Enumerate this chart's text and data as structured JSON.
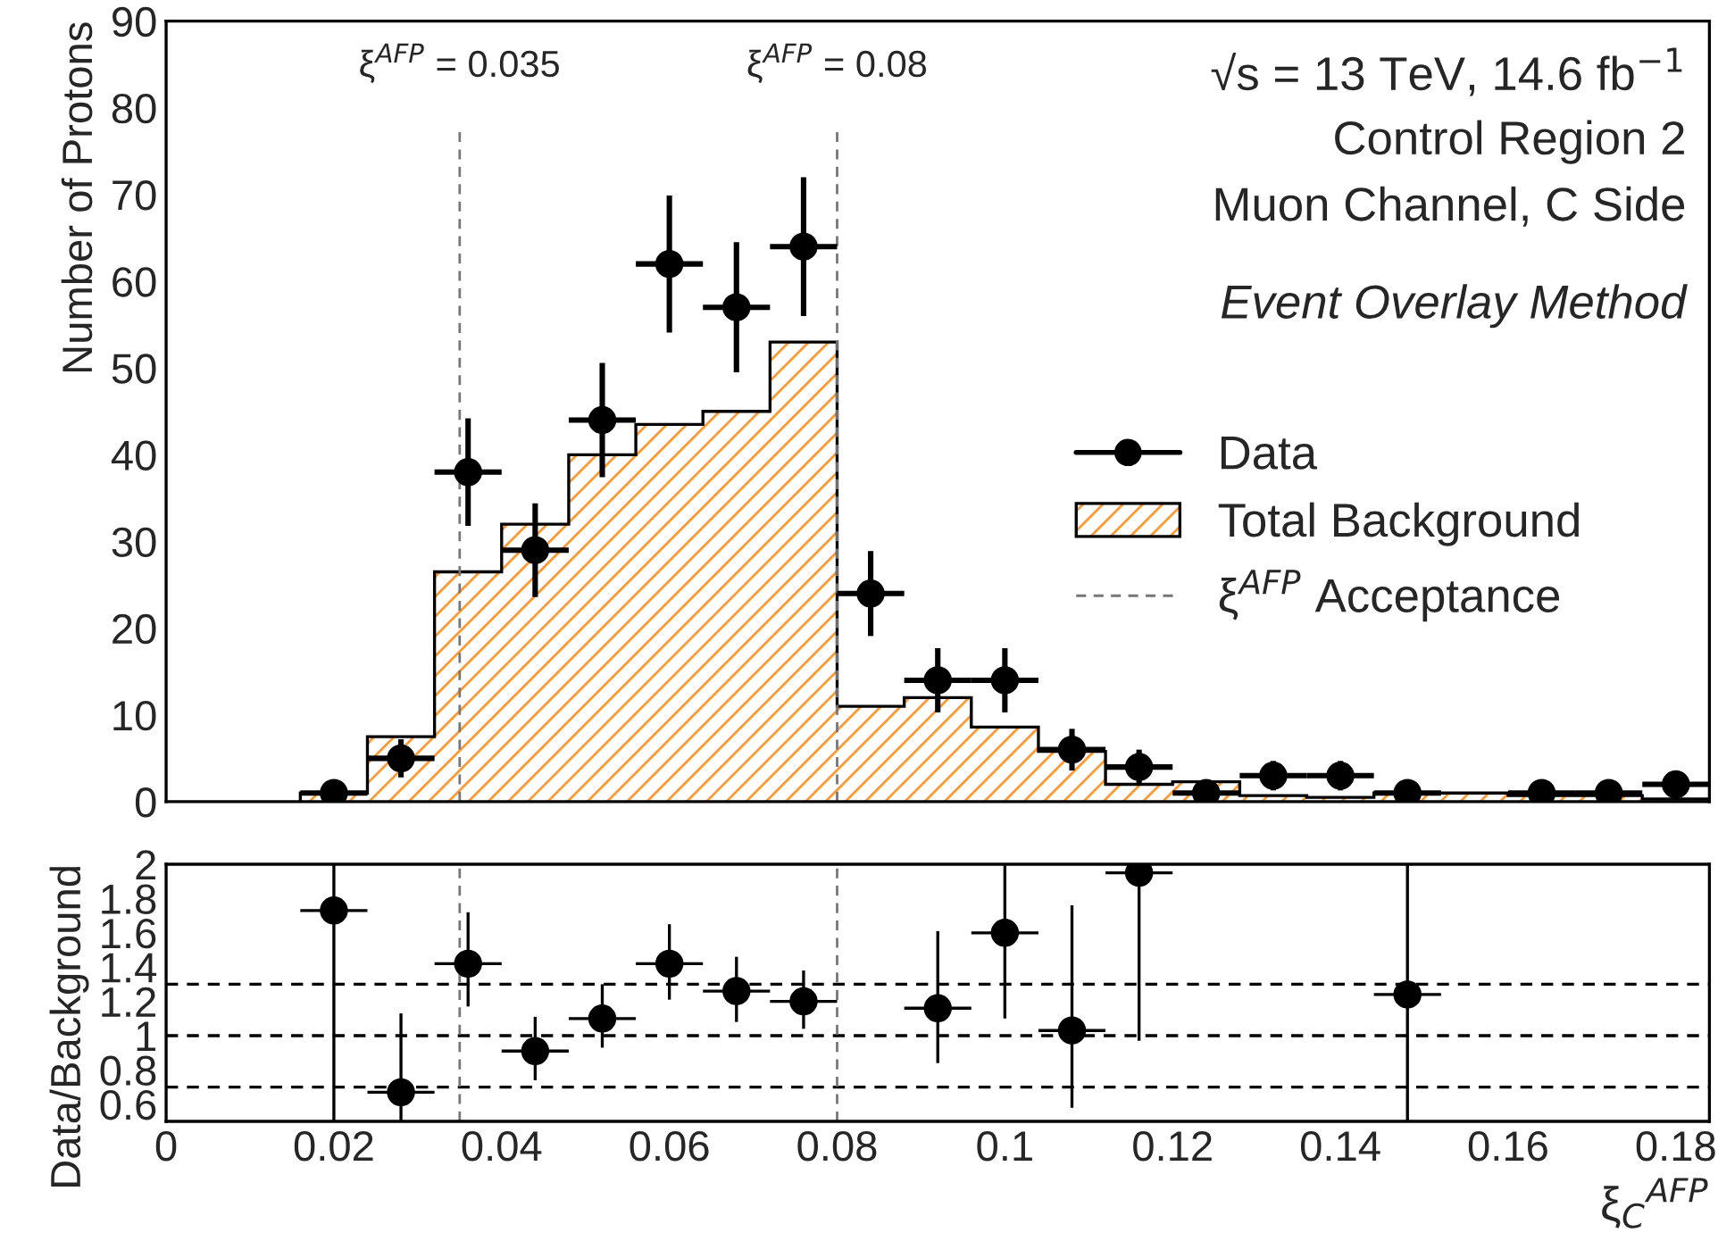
{
  "chart_data": [
    {
      "type": "histogram",
      "ylabel": "Number of Protons",
      "xlim": [
        0,
        0.184
      ],
      "xticks": [
        0,
        0.02,
        0.04,
        0.06,
        0.08,
        0.1,
        0.12,
        0.14,
        0.16,
        0.18
      ],
      "ylim": [
        0,
        90
      ],
      "yticks": [
        0,
        10,
        20,
        30,
        40,
        50,
        60,
        70,
        80,
        90
      ],
      "tick_labels": "y",
      "grid": false,
      "legend": "right",
      "bins": [
        0.016,
        0.024,
        0.032,
        0.04,
        0.048,
        0.056,
        0.064,
        0.072,
        0.08,
        0.088,
        0.096,
        0.104,
        0.112,
        0.12,
        0.128,
        0.136,
        0.144,
        0.152,
        0.16,
        0.168,
        0.176,
        0.184
      ],
      "series": [
        {
          "name": "Data",
          "type": "scatter",
          "color": "#000000",
          "marker": "circle",
          "x": [
            0.02,
            0.028,
            0.036,
            0.044,
            0.052,
            0.06,
            0.068,
            0.076,
            0.084,
            0.092,
            0.1,
            0.108,
            0.116,
            0.124,
            0.132,
            0.14,
            0.148,
            0.164,
            0.172,
            0.18
          ],
          "values": [
            1,
            5,
            38,
            29,
            44,
            62,
            57,
            64,
            24,
            14,
            14,
            6,
            4,
            1,
            3,
            3,
            1,
            1,
            1,
            2
          ],
          "errors": [
            1,
            2.2,
            6.2,
            5.4,
            6.6,
            7.9,
            7.5,
            8,
            4.9,
            3.7,
            3.7,
            2.4,
            2,
            1,
            1.7,
            1.7,
            1,
            1,
            1,
            1.4
          ],
          "xerrors": [
            0.004,
            0.004,
            0.004,
            0.004,
            0.004,
            0.004,
            0.004,
            0.004,
            0.004,
            0.004,
            0.004,
            0.004,
            0.004,
            0.004,
            0.004,
            0.004,
            0.004,
            0.004,
            0.004,
            0.004
          ]
        },
        {
          "name": "Total Background",
          "type": "histogram",
          "color": "#ff9933",
          "values": [
            1,
            7.5,
            26.5,
            32,
            40,
            43.5,
            45,
            53,
            11,
            12,
            8.6,
            5.8,
            2,
            2.3,
            0.7,
            0.5,
            1,
            1,
            0.7,
            0.7,
            0.3
          ]
        }
      ],
      "ref_lines": [
        {
          "axis": "x",
          "value": 0.035,
          "label": "ξ$^{AFP}$ = 0.035",
          "color": "#777777",
          "line_style": "dashed"
        },
        {
          "axis": "x",
          "value": 0.08,
          "label": "ξ$^{AFP}$ = 0.08",
          "color": "#777777",
          "line_style": "dashed"
        }
      ],
      "annotations": [
        "√s = 13 TeV, 14.6 fb$^{−1}$",
        "Control Region 2",
        "Muon Channel, C Side",
        "Event Overlay Method",
        "ξ$^{AFP}$ Acceptance"
      ]
    },
    {
      "type": "scatter",
      "ylabel": "Data/Background",
      "xlabel": "ξ$_{C}$$^{AFP}$",
      "xlim": [
        0,
        0.184
      ],
      "xticks": [
        0,
        0.02,
        0.04,
        0.06,
        0.08,
        0.1,
        0.12,
        0.14,
        0.16,
        0.18
      ],
      "ylim": [
        0.5,
        2
      ],
      "yticks": [
        0.6,
        0.8,
        1,
        1.2,
        1.4,
        1.6,
        1.8,
        2
      ],
      "grid": false,
      "marker": "circle",
      "color": "#000000",
      "x": [
        0.02,
        0.028,
        0.036,
        0.044,
        0.052,
        0.06,
        0.068,
        0.076,
        0.092,
        0.1,
        0.108,
        0.116,
        0.148
      ],
      "values": [
        1.73,
        0.67,
        1.42,
        0.91,
        1.1,
        1.42,
        1.26,
        1.2,
        1.16,
        1.6,
        1.03,
        1.95,
        1.24
      ],
      "errors": [
        [
          0.5,
          2
        ],
        [
          0.5,
          1.13
        ],
        [
          1.17,
          1.72
        ],
        [
          0.74,
          1.11
        ],
        [
          0.93,
          1.3
        ],
        [
          1.21,
          1.65
        ],
        [
          1.08,
          1.46
        ],
        [
          1.04,
          1.38
        ],
        [
          0.84,
          1.61
        ],
        [
          1.1,
          2
        ],
        [
          0.58,
          1.76
        ],
        [
          0.97,
          2
        ],
        [
          0.5,
          2
        ]
      ],
      "xerrors": [
        0.004,
        0.004,
        0.004,
        0.004,
        0.004,
        0.004,
        0.004,
        0.004,
        0.004,
        0.004,
        0.004,
        0.004,
        0.004
      ],
      "ref_lines": [
        {
          "axis": "y",
          "value": 0.7,
          "color": "#000000",
          "line_style": "dashed"
        },
        {
          "axis": "y",
          "value": 1,
          "color": "#000000",
          "line_style": "dashed"
        },
        {
          "axis": "y",
          "value": 1.3,
          "color": "#000000",
          "line_style": "dashed"
        },
        {
          "axis": "x",
          "value": 0.035,
          "color": "#777777",
          "line_style": "dashed"
        },
        {
          "axis": "x",
          "value": 0.08,
          "color": "#777777",
          "line_style": "dashed"
        }
      ]
    }
  ]
}
